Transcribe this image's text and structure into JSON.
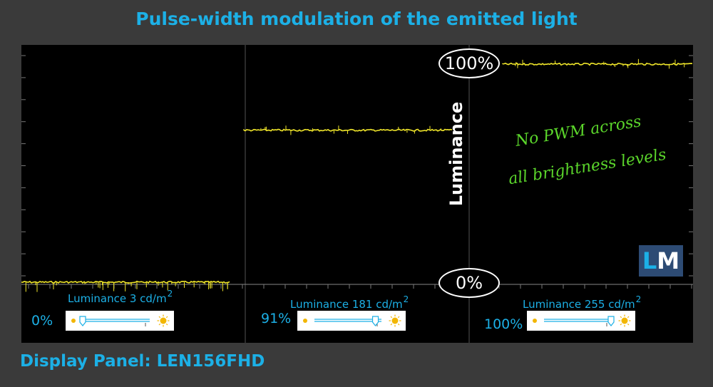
{
  "title": "Pulse-width modulation of the emitted light",
  "footer": "Display Panel: LEN156FHD",
  "axis_label": "Luminance",
  "marker_top": "100%",
  "marker_bottom": "0%",
  "note": [
    "No PWM across",
    "all brightness levels"
  ],
  "logo": {
    "l": "L",
    "m": "M"
  },
  "colors": {
    "trace": "#f0e62a",
    "accent": "#1cb0e6",
    "note": "#5bd62b",
    "background": "#3a3a3a",
    "scope": "#000000"
  },
  "panels": [
    {
      "label": "Luminance 3 cd/m",
      "sup": "2",
      "percent": "0%",
      "slider_level": 0.0
    },
    {
      "label": "Luminance 181 cd/m",
      "sup": "2",
      "percent": "91%",
      "slider_level": 0.91
    },
    {
      "label": "Luminance 255 cd/m",
      "sup": "2",
      "percent": "100%",
      "slider_level": 1.0
    }
  ],
  "icons": [
    "sun-low-icon",
    "sun-high-icon"
  ],
  "chart_data": {
    "type": "line",
    "title": "Pulse-width modulation of the emitted light",
    "ylabel": "Luminance",
    "y_markers": [
      "0%",
      "100%"
    ],
    "ylim": [
      0,
      100
    ],
    "grid": true,
    "series": [
      {
        "name": "Luminance 3 cd/m2",
        "brightness": "0%",
        "level": 1,
        "pwm": false
      },
      {
        "name": "Luminance 181 cd/m2",
        "brightness": "91%",
        "level": 70,
        "pwm": false
      },
      {
        "name": "Luminance 255 cd/m2",
        "brightness": "100%",
        "level": 100,
        "pwm": false
      }
    ]
  }
}
